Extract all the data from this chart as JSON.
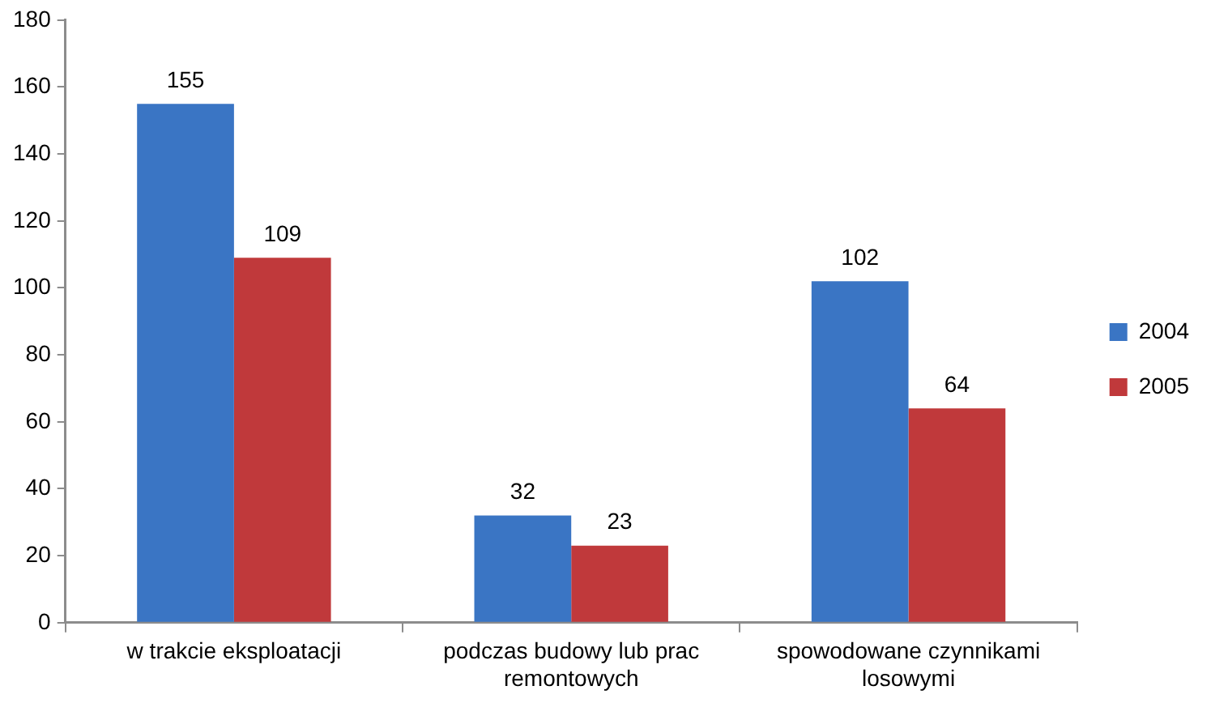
{
  "chart_data": {
    "type": "bar",
    "categories": [
      "w trakcie eksploatacji",
      "podczas budowy lub prac remontowych",
      "spowodowane czynnikami losowymi"
    ],
    "series": [
      {
        "name": "2004",
        "color": "#3a75c4",
        "values": [
          155,
          32,
          102
        ]
      },
      {
        "name": "2005",
        "color": "#c0393b",
        "values": [
          109,
          23,
          64
        ]
      }
    ],
    "ylim": [
      0,
      180
    ],
    "yticks": [
      0,
      20,
      40,
      60,
      80,
      100,
      120,
      140,
      160,
      180
    ],
    "data_labels": true,
    "legend": "right"
  }
}
